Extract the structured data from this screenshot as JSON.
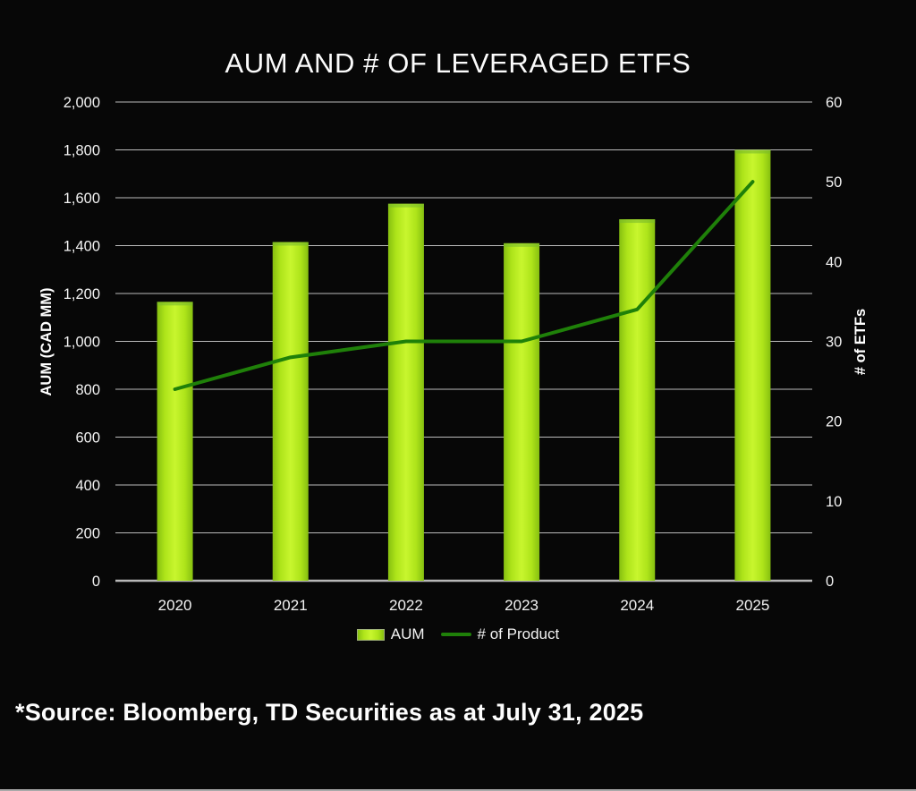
{
  "title": "AUM AND # OF LEVERAGED ETFS",
  "source_note": "*Source: Bloomberg, TD Securities as at July 31, 2025",
  "colors": {
    "background": "#070707",
    "text": "#f3f3f3",
    "grid": "#cfcfcf",
    "axis_line": "#b8b8b8",
    "bar_edge": "#86bf10",
    "bar_mid": "#aee41a",
    "bar_center": "#c8f62e",
    "bar_cap": "#79bb2c",
    "line": "#1f8009"
  },
  "chart_data": {
    "type": "combo: bar + line",
    "title": "AUM AND # OF LEVERAGED ETFS",
    "categories": [
      "2020",
      "2021",
      "2022",
      "2023",
      "2024",
      "2025"
    ],
    "series": [
      {
        "name": "AUM",
        "type": "bar",
        "axis": "left",
        "values": [
          1165,
          1415,
          1575,
          1410,
          1510,
          1800
        ]
      },
      {
        "name": "# of Product",
        "type": "line",
        "axis": "right",
        "values": [
          24,
          28,
          30,
          30,
          34,
          50
        ]
      }
    ],
    "left_axis": {
      "label": "AUM (CAD MM)",
      "min": 0,
      "max": 2000,
      "step": 200
    },
    "right_axis": {
      "label": "# of ETFs",
      "min": 0,
      "max": 60,
      "step": 10
    },
    "grid": true,
    "legend_position": "bottom"
  }
}
